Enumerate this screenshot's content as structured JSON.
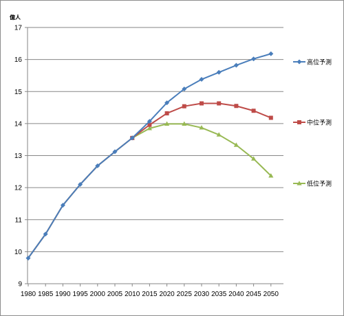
{
  "chart_data": {
    "type": "line",
    "ylabel": "億人",
    "ylim": [
      9,
      17
    ],
    "yticks": [
      9,
      10,
      11,
      12,
      13,
      14,
      15,
      16,
      17
    ],
    "categories": [
      "1980",
      "1985",
      "1990",
      "1995",
      "2000",
      "2005",
      "2010",
      "2015",
      "2020",
      "2025",
      "2030",
      "2035",
      "2040",
      "2045",
      "2050"
    ],
    "grid": "horizontal",
    "legend_position": "right",
    "series": [
      {
        "name": "高位予測",
        "color": "#4a7ebb",
        "marker": "diamond",
        "values": [
          9.8,
          10.55,
          11.45,
          12.1,
          12.68,
          13.12,
          13.55,
          14.07,
          14.65,
          15.08,
          15.38,
          15.6,
          15.82,
          16.02,
          16.18
        ]
      },
      {
        "name": "中位予測",
        "color": "#be4b48",
        "marker": "square",
        "values": [
          9.8,
          10.55,
          11.45,
          12.1,
          12.68,
          13.12,
          13.55,
          13.96,
          14.32,
          14.54,
          14.63,
          14.63,
          14.55,
          14.4,
          14.18
        ]
      },
      {
        "name": "低位予測",
        "color": "#98b954",
        "marker": "triangle",
        "values": [
          9.8,
          10.55,
          11.45,
          12.1,
          12.68,
          13.12,
          13.55,
          13.85,
          13.99,
          13.99,
          13.87,
          13.65,
          13.33,
          12.9,
          12.37
        ]
      }
    ]
  }
}
